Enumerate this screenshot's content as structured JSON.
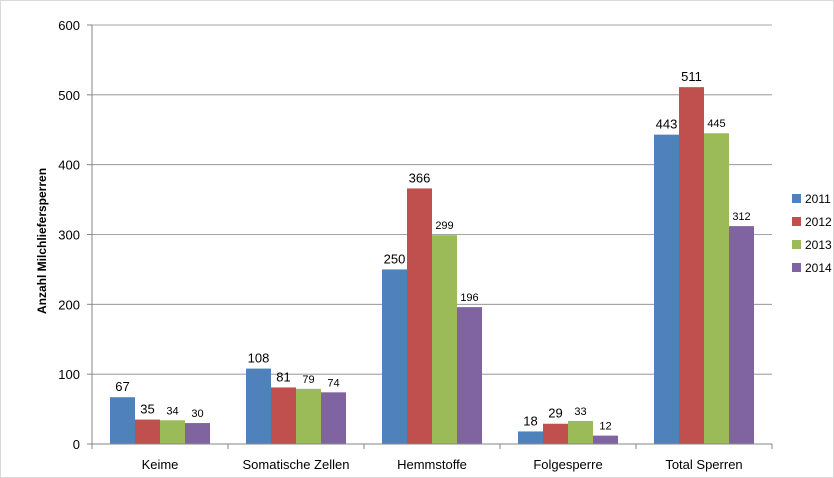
{
  "chart_data": {
    "type": "bar",
    "title": "",
    "xlabel": "",
    "ylabel": "Anzahl Milchliefersperren",
    "ylim": [
      0,
      600
    ],
    "yticks": [
      0,
      100,
      200,
      300,
      400,
      500,
      600
    ],
    "grid": true,
    "legend_position": "right",
    "categories": [
      "Keime",
      "Somatische Zellen",
      "Hemmstoffe",
      "Folgesperre",
      "Total Sperren"
    ],
    "series": [
      {
        "name": "2011",
        "color": "#4f81bd",
        "values": [
          67,
          108,
          250,
          18,
          443
        ]
      },
      {
        "name": "2012",
        "color": "#c0504d",
        "values": [
          35,
          81,
          366,
          29,
          511
        ]
      },
      {
        "name": "2013",
        "color": "#9bbb59",
        "values": [
          34,
          79,
          299,
          33,
          445
        ]
      },
      {
        "name": "2014",
        "color": "#8064a2",
        "values": [
          30,
          74,
          196,
          12,
          312
        ]
      }
    ]
  }
}
